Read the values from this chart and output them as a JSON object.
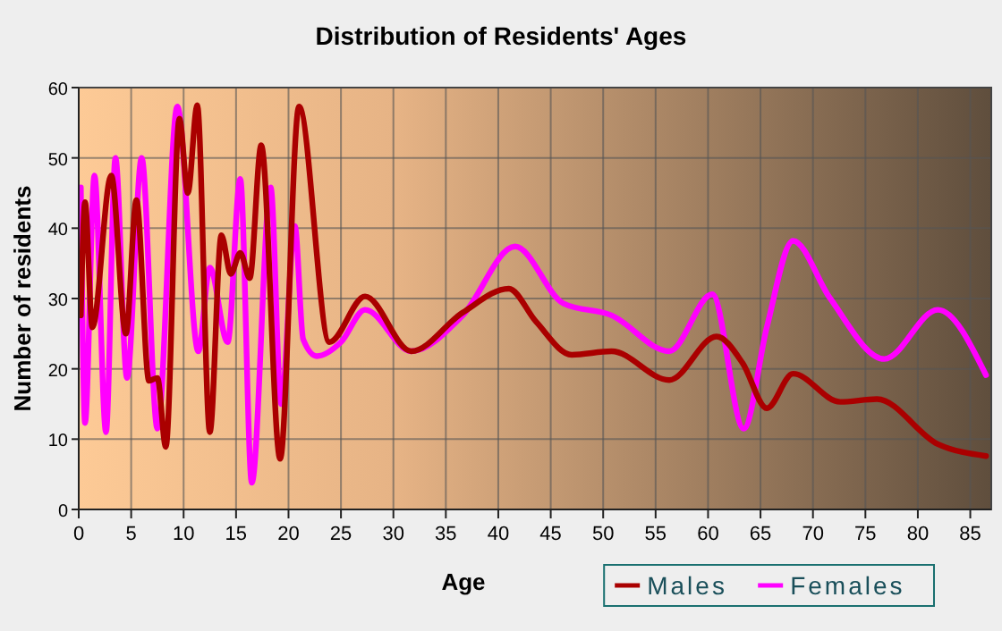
{
  "chart_data": {
    "type": "line",
    "title": "Distribution of Residents' Ages",
    "xlabel": "Age",
    "ylabel": "Number of residents",
    "xlim": [
      0,
      87
    ],
    "xticks": [
      0,
      5,
      10,
      15,
      20,
      25,
      30,
      35,
      40,
      45,
      50,
      55,
      60,
      65,
      70,
      75,
      80,
      85
    ],
    "ylim": [
      0,
      60
    ],
    "yticks": [
      0,
      10,
      20,
      30,
      40,
      50,
      60
    ],
    "grid": true,
    "legend": "bottom right",
    "marker": "none",
    "line_style": "solid",
    "series": [
      {
        "name": "Males",
        "color": "#aa0000",
        "x": [
          0.2,
          0.6,
          1.3,
          3.1,
          4.5,
          5.5,
          6.7,
          7.5,
          8.3,
          9.6,
          10.4,
          11.3,
          12.5,
          13.6,
          14.5,
          15.4,
          16.3,
          17.4,
          19.2,
          21,
          23.9,
          27.3,
          31.7,
          36.6,
          41,
          43.6,
          47,
          50.8,
          56.3,
          60.8,
          63.3,
          65.6,
          68.1,
          72.6,
          76.1,
          81.9,
          86.5
        ],
        "values": [
          27.6,
          43.7,
          25.9,
          47.5,
          25,
          44,
          18.3,
          18.7,
          8.9,
          55.6,
          45,
          57.5,
          11,
          39,
          33.5,
          36.5,
          32.9,
          51.8,
          7.2,
          57.3,
          23.8,
          30.3,
          22.5,
          28,
          31.4,
          26.7,
          22,
          22.5,
          18.4,
          24.6,
          20.8,
          14.4,
          19.3,
          15.3,
          15.7,
          9.3,
          7.6
        ]
      },
      {
        "name": "Females",
        "color": "#ff00ff",
        "x": [
          0.2,
          0.6,
          1.5,
          2.6,
          3.5,
          4.6,
          6,
          7.5,
          9.4,
          11.4,
          12.5,
          14.2,
          15.4,
          16.5,
          18.3,
          19.3,
          20.6,
          21.4,
          22.7,
          25,
          27.3,
          31.7,
          36.6,
          41.6,
          46.2,
          50.8,
          56.3,
          60.4,
          63.4,
          65.6,
          68.1,
          71.6,
          76.8,
          81.9,
          86.5
        ],
        "values": [
          45.8,
          12.3,
          47.5,
          11,
          50,
          18.7,
          50,
          11.5,
          57.3,
          22.5,
          34.4,
          23.8,
          47,
          3.8,
          45.8,
          15,
          40.3,
          24.2,
          21.8,
          23.8,
          28.4,
          22.5,
          27.6,
          37.4,
          29.3,
          27.6,
          22.5,
          30.6,
          11.5,
          25.9,
          38.2,
          30.1,
          21.4,
          28.4,
          19.1
        ]
      }
    ]
  }
}
